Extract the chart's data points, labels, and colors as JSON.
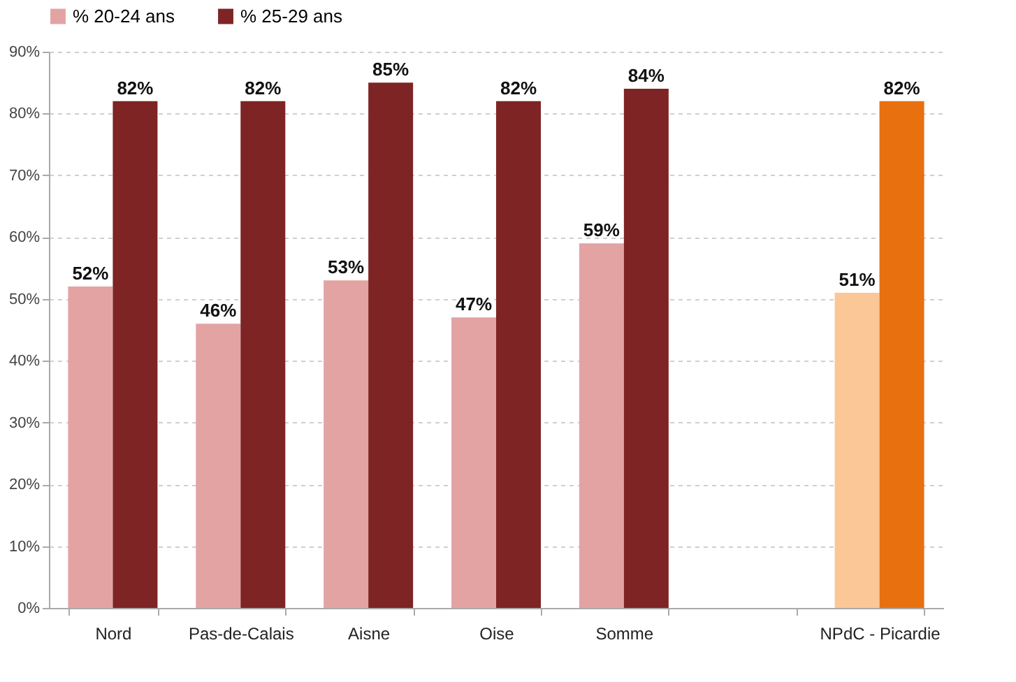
{
  "chart_data": {
    "type": "bar",
    "categories": [
      "Nord",
      "Pas-de-Calais",
      "Aisne",
      "Oise",
      "Somme",
      null,
      "NPdC - Picardie"
    ],
    "series": [
      {
        "name": "% 20-24 ans",
        "color": "#e3a3a3",
        "colors": [
          "#e3a3a3",
          "#e3a3a3",
          "#e3a3a3",
          "#e3a3a3",
          "#e3a3a3",
          null,
          "#fbc796"
        ],
        "values": [
          52,
          46,
          53,
          47,
          59,
          null,
          51
        ],
        "value_labels": [
          "52%",
          "46%",
          "53%",
          "47%",
          "59%",
          null,
          "51%"
        ]
      },
      {
        "name": "% 25-29 ans",
        "color": "#7e2424",
        "colors": [
          "#7e2424",
          "#7e2424",
          "#7e2424",
          "#7e2424",
          "#7e2424",
          null,
          "#e8700f"
        ],
        "values": [
          82,
          82,
          85,
          82,
          84,
          null,
          82
        ],
        "value_labels": [
          "82%",
          "82%",
          "85%",
          "82%",
          "84%",
          null,
          "82%"
        ]
      }
    ],
    "ylim": [
      0,
      90
    ],
    "yticks": [
      {
        "value": 0,
        "label": "0%"
      },
      {
        "value": 10,
        "label": "10%"
      },
      {
        "value": 20,
        "label": "20%"
      },
      {
        "value": 30,
        "label": "30%"
      },
      {
        "value": 40,
        "label": "40%"
      },
      {
        "value": 50,
        "label": "50%"
      },
      {
        "value": 60,
        "label": "60%"
      },
      {
        "value": 70,
        "label": "70%"
      },
      {
        "value": 80,
        "label": "80%"
      },
      {
        "value": 90,
        "label": "90%"
      }
    ],
    "grid": "y",
    "legend": "top"
  }
}
